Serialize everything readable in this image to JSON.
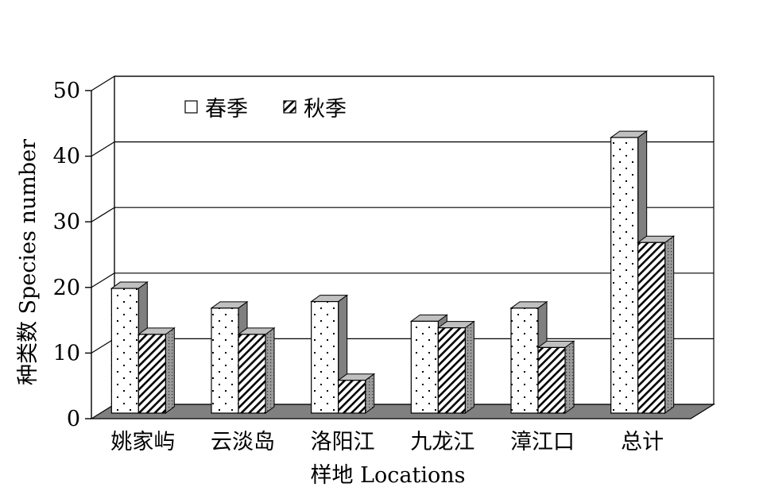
{
  "chart_data": {
    "type": "bar",
    "title": "",
    "xlabel": "样地 Locations",
    "ylabel": "种类数 Species number",
    "ylim": [
      0,
      50
    ],
    "yticks": [
      0,
      10,
      20,
      30,
      40,
      50
    ],
    "grid": true,
    "legend_position": "top-left",
    "categories": [
      "姚家屿",
      "云淡岛",
      "洛阳江",
      "九龙江",
      "漳江口",
      "总计"
    ],
    "series": [
      {
        "name": "春季",
        "pattern": "dots",
        "values": [
          19,
          16,
          17,
          14,
          16,
          42
        ]
      },
      {
        "name": "秋季",
        "pattern": "hatch",
        "values": [
          12,
          12,
          5,
          13,
          10,
          26
        ]
      }
    ],
    "colors": {
      "floor": "#808080",
      "side": "#808080",
      "top": "#c0c0c0",
      "face": "#ffffff"
    }
  }
}
